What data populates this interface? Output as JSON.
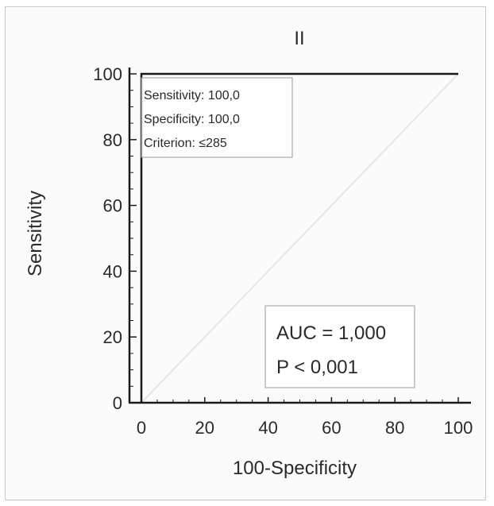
{
  "chart_data": {
    "type": "line",
    "title": "II",
    "xlabel": "100-Specificity",
    "ylabel": "Sensitivity",
    "xlim": [
      0,
      100
    ],
    "ylim": [
      0,
      100
    ],
    "xticks": [
      "0",
      "20",
      "40",
      "60",
      "80",
      "100"
    ],
    "yticks": [
      "0",
      "20",
      "40",
      "60",
      "80",
      "100"
    ],
    "grid": false,
    "series": [
      {
        "name": "",
        "x": [
          0,
          0,
          100
        ],
        "y": [
          0,
          100,
          100
        ]
      }
    ],
    "reference_line": {
      "x": [
        0,
        100
      ],
      "y": [
        0,
        100
      ]
    },
    "annotations": {
      "top_box": [
        "Sensitivity: 100,0",
        "Specificity: 100,0",
        "Criterion: ≤285"
      ],
      "auc_box": [
        "AUC = 1,000",
        "P < 0,001"
      ]
    },
    "colors": {
      "curve": "#1a1a1a",
      "axes": "#1a1a1a",
      "reference": "#e6e6e6",
      "box_border": "#9a9a9a"
    }
  }
}
